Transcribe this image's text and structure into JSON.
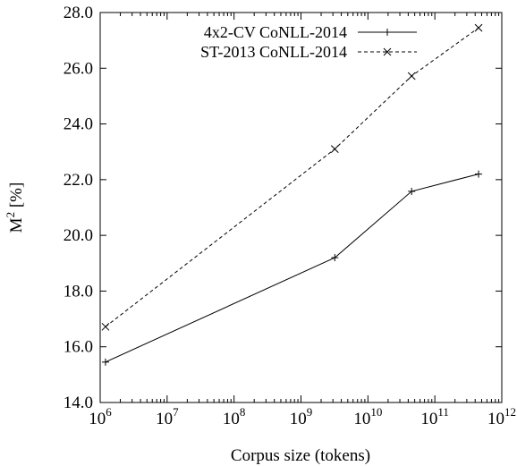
{
  "chart_data": {
    "type": "line",
    "xlabel": "Corpus size (tokens)",
    "ylabel_base": "M",
    "ylabel_sup": "2",
    "ylabel_rest": " [%]",
    "xscale": "log",
    "x_tick_base": "10",
    "x_ticks": [
      {
        "value": 1000000,
        "exp": "6"
      },
      {
        "value": 10000000,
        "exp": "7"
      },
      {
        "value": 100000000,
        "exp": "8"
      },
      {
        "value": 1000000000,
        "exp": "9"
      },
      {
        "value": 10000000000,
        "exp": "10"
      },
      {
        "value": 100000000000,
        "exp": "11"
      },
      {
        "value": 1000000000000,
        "exp": "12"
      }
    ],
    "xlim": [
      1000000,
      1000000000000
    ],
    "ylim": [
      14.0,
      28.0
    ],
    "y_ticks": [
      {
        "value": 14,
        "label": "14.0"
      },
      {
        "value": 16,
        "label": "16.0"
      },
      {
        "value": 18,
        "label": "18.0"
      },
      {
        "value": 20,
        "label": "20.0"
      },
      {
        "value": 22,
        "label": "22.0"
      },
      {
        "value": 24,
        "label": "24.0"
      },
      {
        "value": 26,
        "label": "26.0"
      },
      {
        "value": 28,
        "label": "28.0"
      }
    ],
    "grid": false,
    "legend_position": "top-left",
    "series": [
      {
        "name": "4x2-CV CoNLL-2014",
        "line_style": "solid",
        "marker": "plus",
        "color": "#000000",
        "x": [
          1200000,
          3200000000,
          45000000000,
          450000000000
        ],
        "y": [
          15.45,
          19.2,
          21.58,
          22.2
        ]
      },
      {
        "name": "ST-2013 CoNLL-2014",
        "line_style": "dashed",
        "marker": "cross",
        "color": "#000000",
        "x": [
          1200000,
          3200000000,
          45000000000,
          450000000000
        ],
        "y": [
          16.72,
          23.1,
          25.72,
          27.45
        ]
      }
    ]
  }
}
